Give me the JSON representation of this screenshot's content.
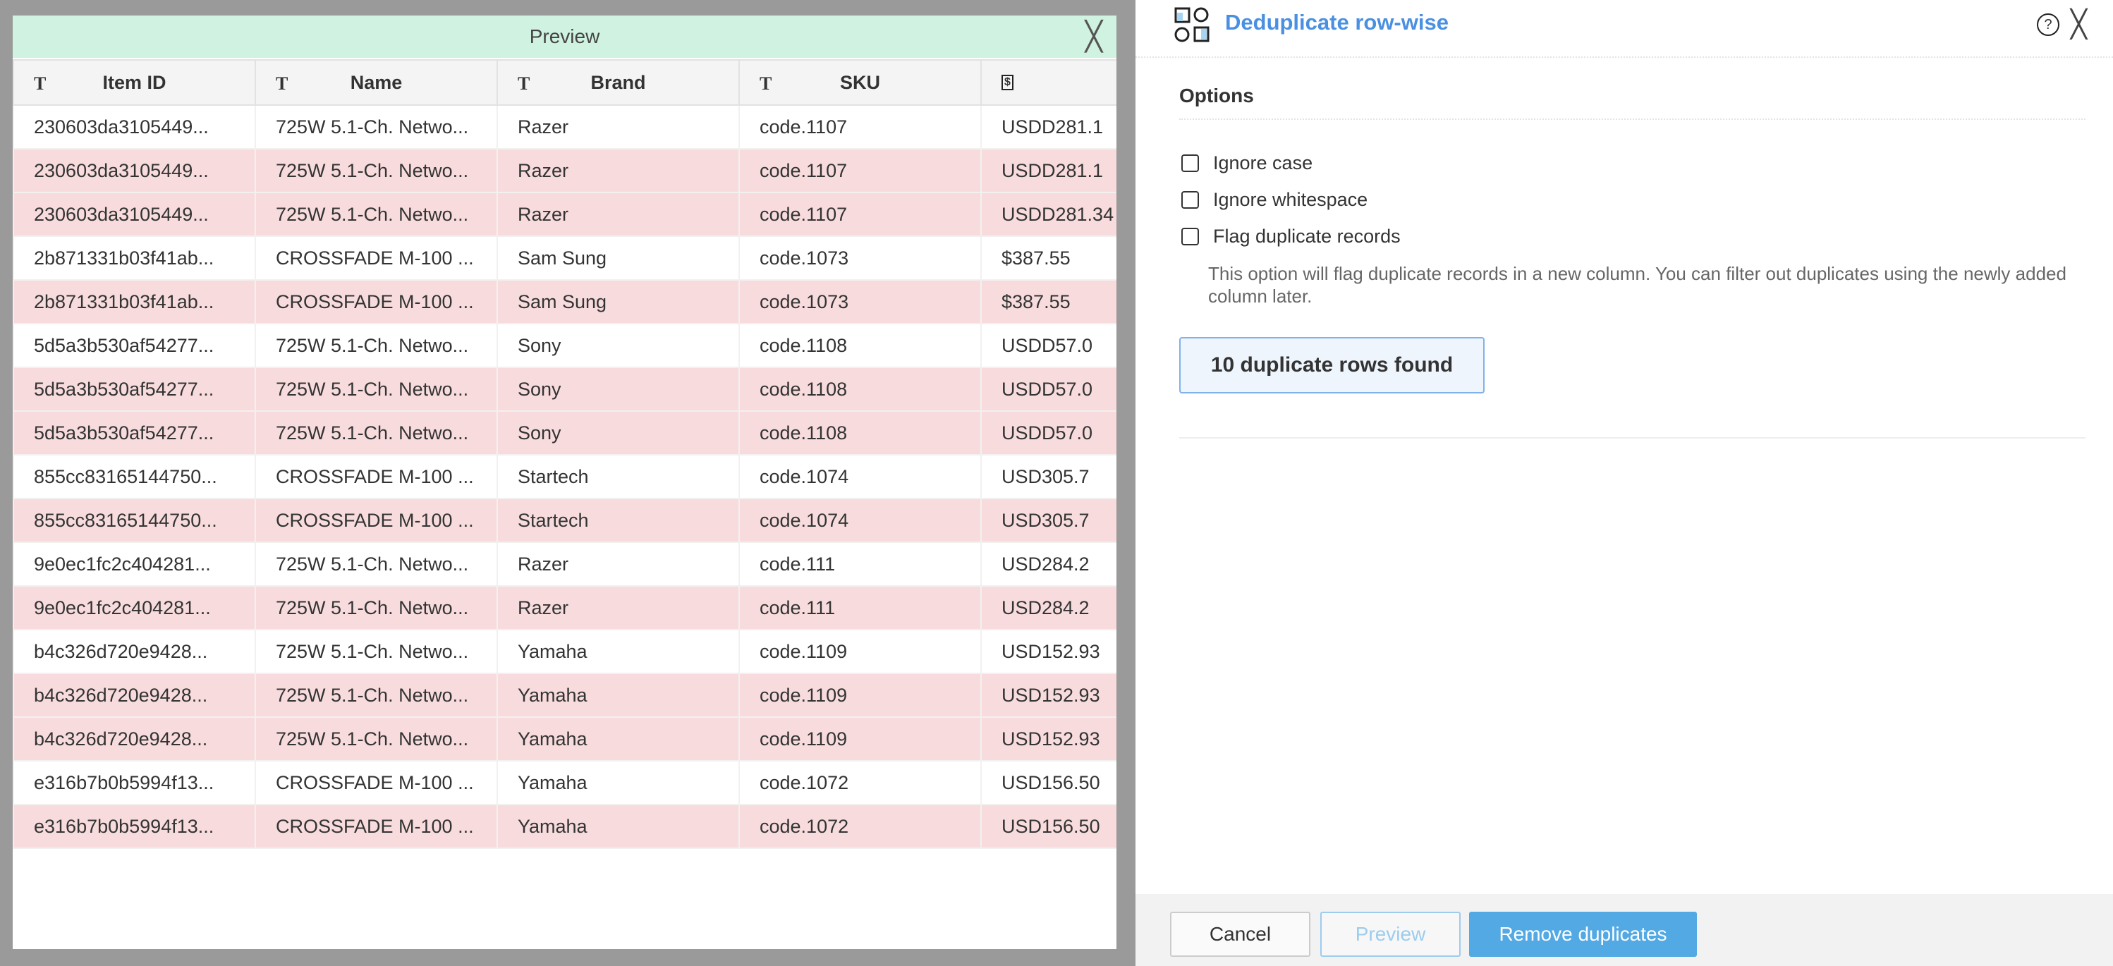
{
  "preview_modal": {
    "title": "Preview",
    "columns": [
      {
        "type_icon": "T",
        "label": "Item ID"
      },
      {
        "type_icon": "T",
        "label": "Name"
      },
      {
        "type_icon": "T",
        "label": "Brand"
      },
      {
        "type_icon": "T",
        "label": "SKU"
      },
      {
        "type_icon": "$",
        "label": ""
      }
    ],
    "rows": [
      {
        "dup": false,
        "cells": [
          "230603da3105449...",
          "725W 5.1-Ch. Netwo...",
          "Razer",
          "code.1107",
          "USDD281.1"
        ]
      },
      {
        "dup": true,
        "cells": [
          "230603da3105449...",
          "725W 5.1-Ch. Netwo...",
          "Razer",
          "code.1107",
          "USDD281.1"
        ]
      },
      {
        "dup": true,
        "cells": [
          "230603da3105449...",
          "725W 5.1-Ch. Netwo...",
          "Razer",
          "code.1107",
          "USDD281.34"
        ]
      },
      {
        "dup": false,
        "cells": [
          "2b871331b03f41ab...",
          "CROSSFADE M-100 ...",
          "Sam Sung",
          "code.1073",
          "$387.55"
        ]
      },
      {
        "dup": true,
        "cells": [
          "2b871331b03f41ab...",
          "CROSSFADE M-100 ...",
          "Sam Sung",
          "code.1073",
          "$387.55"
        ]
      },
      {
        "dup": false,
        "cells": [
          "5d5a3b530af54277...",
          "725W 5.1-Ch. Netwo...",
          "Sony",
          "code.1108",
          "USDD57.0"
        ]
      },
      {
        "dup": true,
        "cells": [
          "5d5a3b530af54277...",
          "725W 5.1-Ch. Netwo...",
          "Sony",
          "code.1108",
          "USDD57.0"
        ]
      },
      {
        "dup": true,
        "cells": [
          "5d5a3b530af54277...",
          "725W 5.1-Ch. Netwo...",
          "Sony",
          "code.1108",
          "USDD57.0"
        ]
      },
      {
        "dup": false,
        "cells": [
          "855cc83165144750...",
          "CROSSFADE M-100 ...",
          "Startech",
          "code.1074",
          "USD305.7"
        ]
      },
      {
        "dup": true,
        "cells": [
          "855cc83165144750...",
          "CROSSFADE M-100 ...",
          "Startech",
          "code.1074",
          "USD305.7"
        ]
      },
      {
        "dup": false,
        "cells": [
          "9e0ec1fc2c404281...",
          "725W 5.1-Ch. Netwo...",
          "Razer",
          "code.111",
          "USD284.2"
        ]
      },
      {
        "dup": true,
        "cells": [
          "9e0ec1fc2c404281...",
          "725W 5.1-Ch. Netwo...",
          "Razer",
          "code.111",
          "USD284.2"
        ]
      },
      {
        "dup": false,
        "cells": [
          "b4c326d720e9428...",
          "725W 5.1-Ch. Netwo...",
          "Yamaha",
          "code.1109",
          "USD152.93"
        ]
      },
      {
        "dup": true,
        "cells": [
          "b4c326d720e9428...",
          "725W 5.1-Ch. Netwo...",
          "Yamaha",
          "code.1109",
          "USD152.93"
        ]
      },
      {
        "dup": true,
        "cells": [
          "b4c326d720e9428...",
          "725W 5.1-Ch. Netwo...",
          "Yamaha",
          "code.1109",
          "USD152.93"
        ]
      },
      {
        "dup": false,
        "cells": [
          "e316b7b0b5994f13...",
          "CROSSFADE M-100 ...",
          "Yamaha",
          "code.1072",
          "USD156.50"
        ]
      },
      {
        "dup": true,
        "cells": [
          "e316b7b0b5994f13...",
          "CROSSFADE M-100 ...",
          "Yamaha",
          "code.1072",
          "USD156.50"
        ]
      }
    ]
  },
  "panel": {
    "title": "Deduplicate row-wise",
    "help_icon": "?",
    "options_label": "Options",
    "options": [
      {
        "label": "Ignore case",
        "checked": false
      },
      {
        "label": "Ignore whitespace",
        "checked": false
      },
      {
        "label": "Flag duplicate records",
        "checked": false
      }
    ],
    "flag_hint": "This option will flag duplicate records in a new column. You can filter out duplicates using the newly added column later.",
    "result": "10 duplicate rows found",
    "buttons": {
      "cancel": "Cancel",
      "preview": "Preview",
      "remove": "Remove duplicates"
    },
    "accent": "#4a90e2",
    "primary": "#53a9e3",
    "dup_row_color": "#f8dcdd",
    "header_color": "#d0f2e0"
  }
}
